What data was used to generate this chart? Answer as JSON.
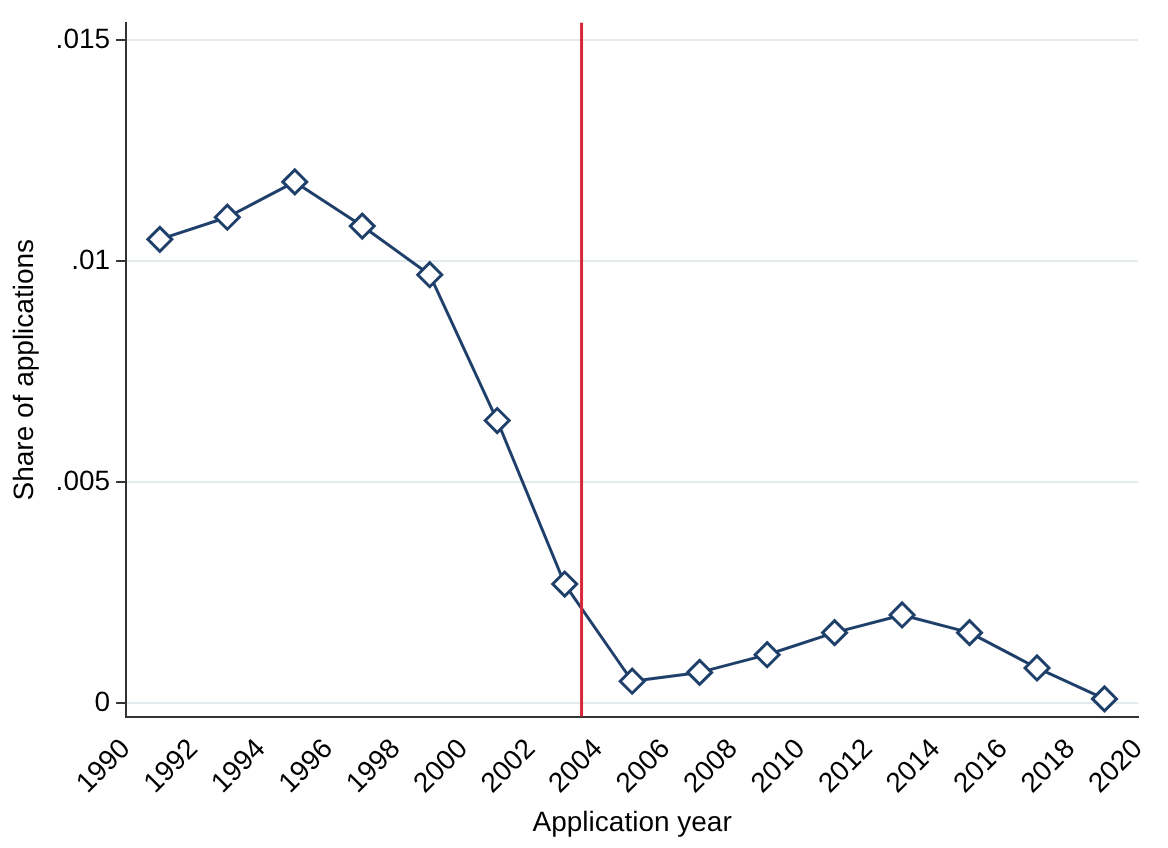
{
  "chart_data": {
    "type": "line",
    "xlabel": "Application year",
    "ylabel": "Share of applications",
    "x": [
      1991,
      1993,
      1995,
      1997,
      1999,
      2001,
      2003,
      2005,
      2007,
      2009,
      2011,
      2013,
      2015,
      2017,
      2019
    ],
    "series": [
      {
        "color": "#1f3f6b",
        "values": [
          0.0105,
          0.011,
          0.0118,
          0.0108,
          0.0097,
          0.0064,
          0.0027,
          0.0005,
          0.0007,
          0.0011,
          0.0016,
          0.002,
          0.0016,
          0.0008,
          0.0001
        ]
      }
    ],
    "xlim": [
      1990,
      2020
    ],
    "xticks": [
      1990,
      1992,
      1994,
      1996,
      1998,
      2000,
      2002,
      2004,
      2006,
      2008,
      2010,
      2012,
      2014,
      2016,
      2018,
      2020
    ],
    "ylim": [
      -0.0003,
      0.0154
    ],
    "yticks": [
      {
        "value": 0,
        "label": "0"
      },
      {
        "value": 0.005,
        "label": ".005"
      },
      {
        "value": 0.01,
        "label": ".01"
      },
      {
        "value": 0.015,
        "label": ".015"
      }
    ],
    "grid": "y",
    "marker": "diamond",
    "line_style": "solid",
    "legend": false,
    "ref_lines": [
      {
        "axis": "x",
        "value": 2003.5,
        "color": "#d62839"
      }
    ]
  }
}
